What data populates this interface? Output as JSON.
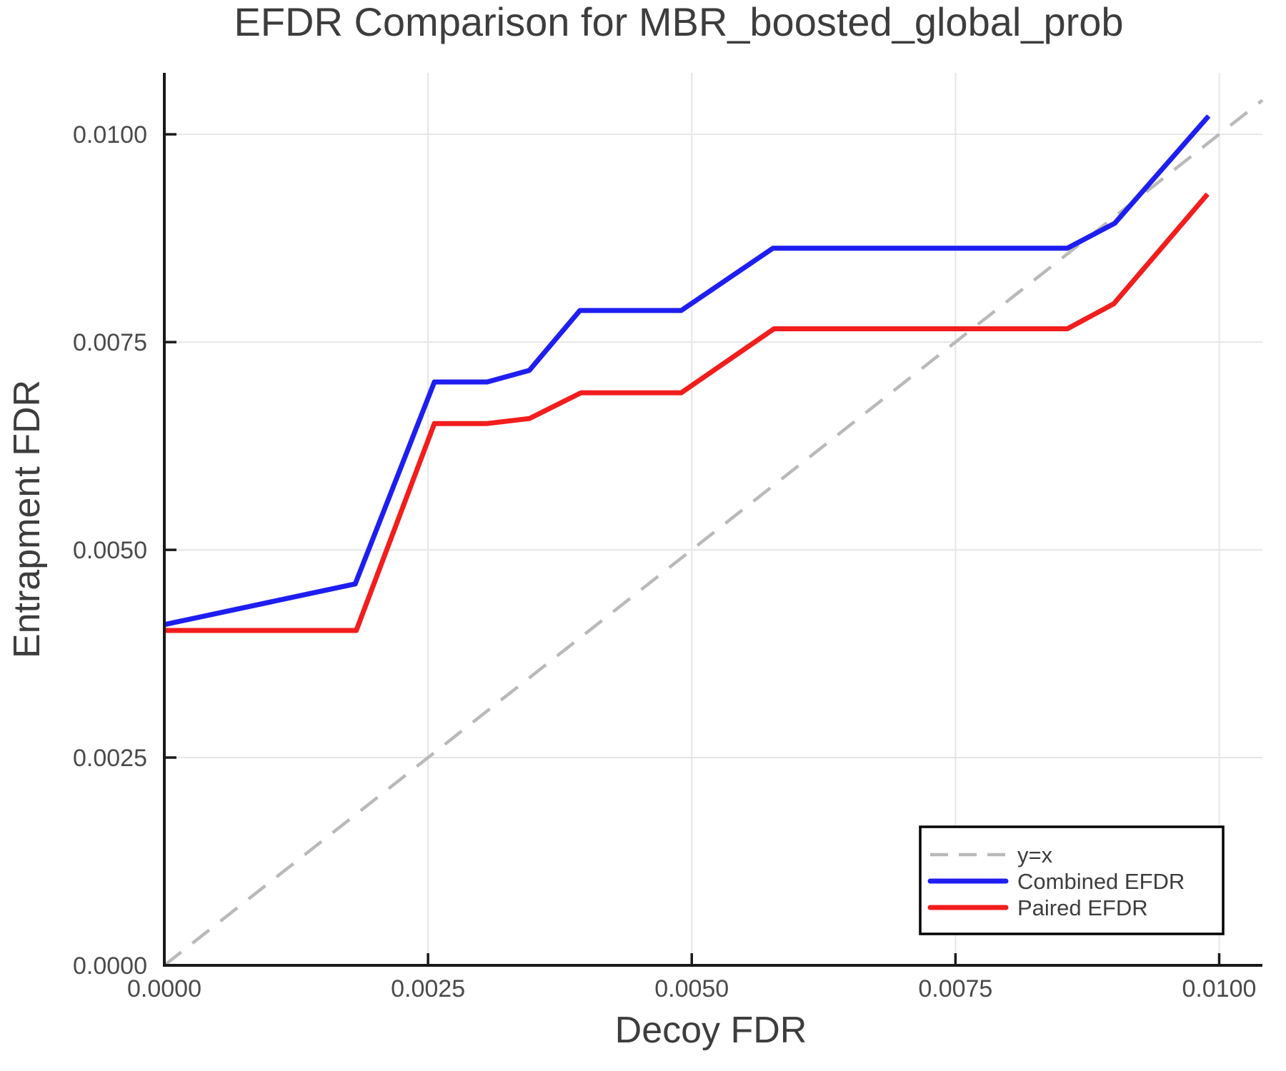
{
  "chart_data": {
    "type": "line",
    "title": "EFDR Comparison for MBR_boosted_global_prob",
    "xlabel": "Decoy FDR",
    "ylabel": "Entrapment FDR",
    "xlim": [
      0,
      0.01041
    ],
    "ylim": [
      0,
      0.01074
    ],
    "grid": true,
    "legend_position": "lower right",
    "x_ticks": {
      "values": [
        0,
        0.0025,
        0.005,
        0.0075,
        0.01
      ],
      "labels": [
        "0.0000",
        "0.0025",
        "0.0050",
        "0.0075",
        "0.0100"
      ]
    },
    "y_ticks": {
      "values": [
        0,
        0.0025,
        0.005,
        0.0075,
        0.01
      ],
      "labels": [
        "0.0000",
        "0.0025",
        "0.0050",
        "0.0075",
        "0.0100"
      ]
    },
    "series": [
      {
        "name": "y=x",
        "color": "#b9b9b9",
        "style": "dashed",
        "points": [
          [
            0,
            0
          ],
          [
            0.01041,
            0.01041
          ]
        ]
      },
      {
        "name": "Combined EFDR",
        "color": "#1e1ef0",
        "style": "solid",
        "points": [
          [
            0.0,
            0.0041
          ],
          [
            0.00181,
            0.00459
          ],
          [
            0.00256,
            0.00702
          ],
          [
            0.00306,
            0.00702
          ],
          [
            0.00346,
            0.00716
          ],
          [
            0.00394,
            0.00788
          ],
          [
            0.0049,
            0.00788
          ],
          [
            0.00577,
            0.00863
          ],
          [
            0.00856,
            0.00863
          ],
          [
            0.00901,
            0.00893
          ],
          [
            0.0099,
            0.01022
          ]
        ]
      },
      {
        "name": "Paired EFDR",
        "color": "#f21d1d",
        "style": "solid",
        "points": [
          [
            0.0,
            0.00403
          ],
          [
            0.00182,
            0.00403
          ],
          [
            0.00256,
            0.00652
          ],
          [
            0.00306,
            0.00652
          ],
          [
            0.00346,
            0.00658
          ],
          [
            0.00395,
            0.00689
          ],
          [
            0.0049,
            0.00689
          ],
          [
            0.00578,
            0.00766
          ],
          [
            0.00856,
            0.00766
          ],
          [
            0.009,
            0.00796
          ],
          [
            0.00989,
            0.00928
          ]
        ]
      }
    ],
    "colors": {
      "background": "#ffffff",
      "grid": "#e6e6e6",
      "axis": "#1a1a1a",
      "tick_label": "#4a4a4a",
      "title": "#3d3d3d",
      "axis_label": "#3d3d3d",
      "legend_text": "#3d3d3d",
      "legend_border": "#000000",
      "legend_background": "#ffffff"
    }
  }
}
